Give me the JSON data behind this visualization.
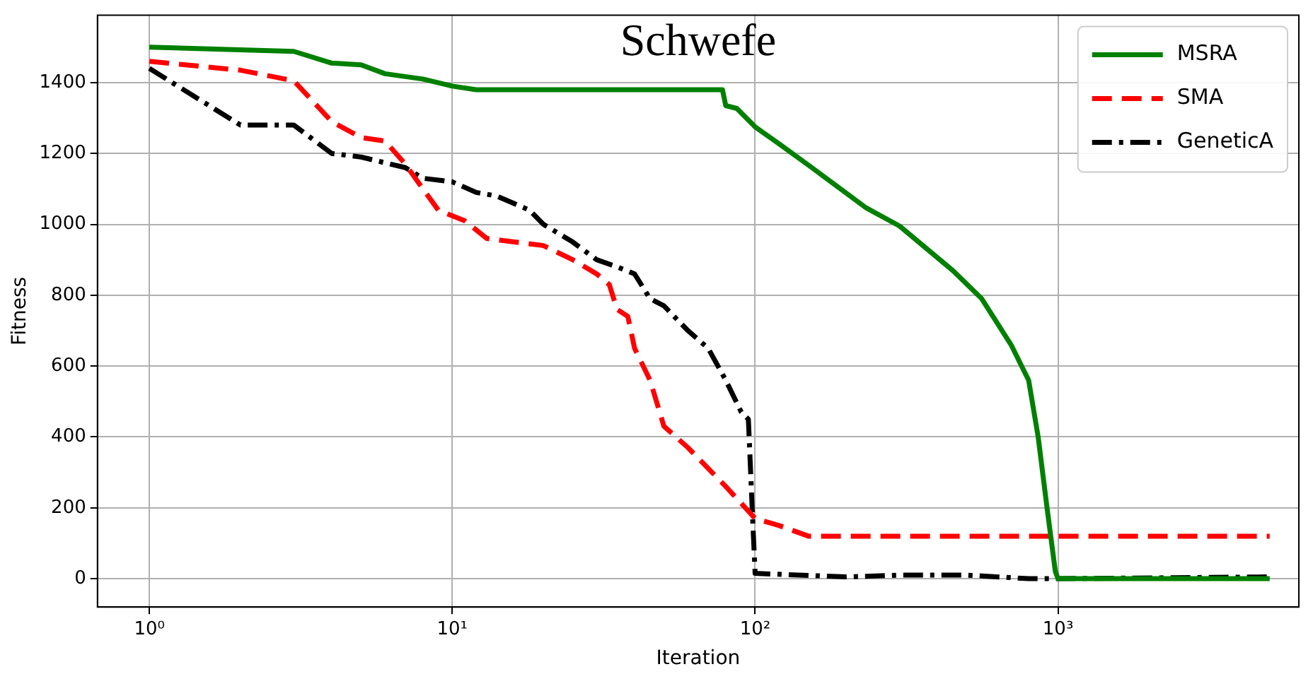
{
  "chart_data": {
    "type": "line",
    "title": "Schwefe",
    "xlabel": "Iteration",
    "ylabel": "Fitness",
    "log": "x",
    "xlim": [
      0.674,
      6240
    ],
    "xticks": [
      {
        "value": 1,
        "label": "10⁰"
      },
      {
        "value": 10,
        "label": "10¹"
      },
      {
        "value": 100,
        "label": "10²"
      },
      {
        "value": 1000,
        "label": "10³"
      }
    ],
    "ylim": [
      -80,
      1590
    ],
    "yticks": [
      0,
      200,
      400,
      600,
      800,
      1000,
      1200,
      1400
    ],
    "grid": true,
    "legend": "top right",
    "marker": "none",
    "series": [
      {
        "name": "MSRA",
        "color": "#008000",
        "line_style": "solid",
        "x": [
          1,
          3,
          4,
          5,
          6,
          8,
          10,
          12,
          78,
          80,
          87,
          100,
          120,
          150,
          233,
          300,
          449,
          560,
          700,
          800,
          860,
          920,
          980,
          1000,
          5000
        ],
        "values": [
          1500,
          1488,
          1455,
          1450,
          1425,
          1410,
          1390,
          1380,
          1380,
          1335,
          1327,
          1275,
          1227,
          1167,
          1046,
          995,
          870,
          790,
          660,
          560,
          400,
          200,
          20,
          0,
          0
        ]
      },
      {
        "name": "SMA",
        "color": "#ff0000",
        "line_style": "dashed",
        "x": [
          1,
          2,
          3,
          4,
          5,
          6,
          7,
          8,
          9,
          11,
          13,
          20,
          25,
          30,
          33,
          35,
          38,
          40,
          45,
          50,
          60,
          80,
          100,
          120,
          150,
          5000
        ],
        "values": [
          1460,
          1435,
          1405,
          1290,
          1245,
          1235,
          1170,
          1100,
          1040,
          1010,
          960,
          940,
          900,
          860,
          830,
          760,
          740,
          650,
          560,
          430,
          370,
          260,
          170,
          150,
          120,
          120
        ]
      },
      {
        "name": "GeneticA",
        "color": "#000000",
        "line_style": "dotted",
        "x": [
          1,
          2,
          3,
          4,
          5,
          7,
          8,
          10,
          12,
          14,
          18,
          20,
          25,
          30,
          35,
          40,
          45,
          50,
          60,
          70,
          80,
          90,
          95,
          98,
          100,
          200,
          300,
          500,
          800,
          1000,
          5000
        ],
        "values": [
          1440,
          1280,
          1280,
          1200,
          1190,
          1160,
          1130,
          1120,
          1090,
          1080,
          1040,
          1000,
          950,
          900,
          880,
          860,
          790,
          770,
          700,
          650,
          560,
          470,
          450,
          180,
          15,
          5,
          10,
          10,
          0,
          0,
          5
        ]
      }
    ]
  }
}
